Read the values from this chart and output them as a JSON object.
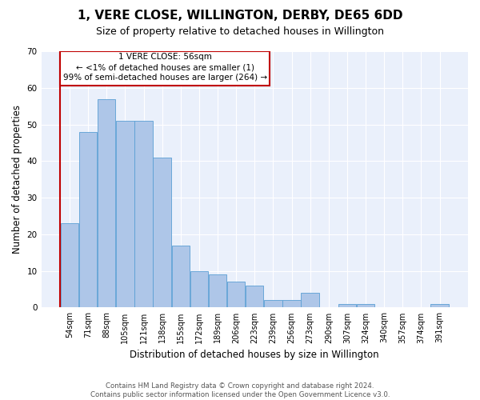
{
  "title": "1, VERE CLOSE, WILLINGTON, DERBY, DE65 6DD",
  "subtitle": "Size of property relative to detached houses in Willington",
  "xlabel": "Distribution of detached houses by size in Willington",
  "ylabel": "Number of detached properties",
  "categories": [
    "54sqm",
    "71sqm",
    "88sqm",
    "105sqm",
    "121sqm",
    "138sqm",
    "155sqm",
    "172sqm",
    "189sqm",
    "206sqm",
    "223sqm",
    "239sqm",
    "256sqm",
    "273sqm",
    "290sqm",
    "307sqm",
    "324sqm",
    "340sqm",
    "357sqm",
    "374sqm",
    "391sqm"
  ],
  "values": [
    23,
    48,
    57,
    51,
    51,
    41,
    17,
    10,
    9,
    7,
    6,
    2,
    2,
    4,
    0,
    1,
    1,
    0,
    0,
    0,
    1
  ],
  "bar_color": "#aec6e8",
  "bar_edge_color": "#5a9fd4",
  "highlight_color": "#c00000",
  "annotation_box_color": "#c00000",
  "annotation_text_line1": "1 VERE CLOSE: 56sqm",
  "annotation_text_line2": "← <1% of detached houses are smaller (1)",
  "annotation_text_line3": "99% of semi-detached houses are larger (264) →",
  "ylim": [
    0,
    70
  ],
  "yticks": [
    0,
    10,
    20,
    30,
    40,
    50,
    60,
    70
  ],
  "background_color": "#eaf0fb",
  "footer_line1": "Contains HM Land Registry data © Crown copyright and database right 2024.",
  "footer_line2": "Contains public sector information licensed under the Open Government Licence v3.0.",
  "title_fontsize": 11,
  "subtitle_fontsize": 9,
  "tick_fontsize": 7,
  "ylabel_fontsize": 8.5,
  "xlabel_fontsize": 8.5
}
